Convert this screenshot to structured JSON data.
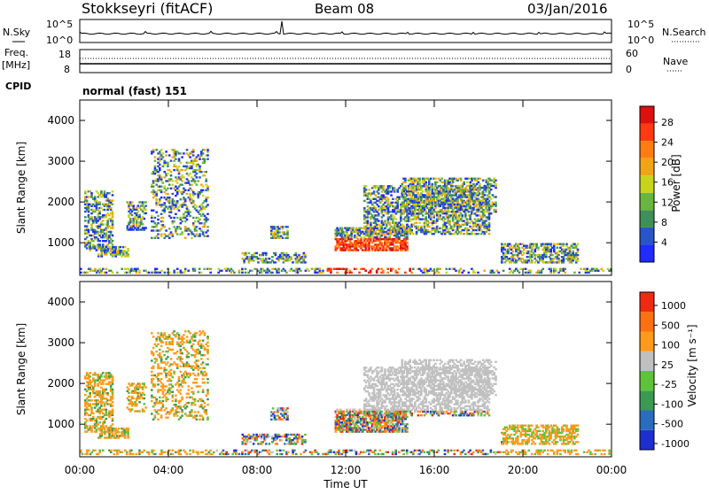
{
  "header": {
    "station": "Stokkseyri (fitACF)",
    "beam": "Beam 08",
    "date": "03/Jan/2016"
  },
  "noise_panel": {
    "left_label": "N.Sky",
    "right_label": "N.Search",
    "left_ticks": [
      "10^5",
      "10^0"
    ],
    "right_ticks": [
      "10^5",
      "10^0"
    ]
  },
  "freq_panel": {
    "left_label_1": "Freq.",
    "left_label_2": "[MHz]",
    "right_label": "Nave",
    "left_ticks": [
      "18",
      "8"
    ],
    "right_ticks": [
      "60",
      "0"
    ],
    "cpid_label": "CPID",
    "cpid_value": "normal (fast) 151"
  },
  "colors": {
    "power_scale": [
      "#1f2bff",
      "#2a55c9",
      "#3f8f58",
      "#6ab440",
      "#c8d41b",
      "#f0a514",
      "#ff7d10",
      "#ff3a10",
      "#dd1010"
    ],
    "velocity_scale": [
      "#1e2fd0",
      "#2a6cbd",
      "#3a9a52",
      "#5fc33a",
      "#c0c0c0",
      "#ff9a1a",
      "#ff7010",
      "#f02a12"
    ]
  },
  "chart_data": [
    {
      "type": "heatmap",
      "title": "Power",
      "ylabel": "Slant Range [km]",
      "yticks": [
        "1000",
        "2000",
        "3000",
        "4000"
      ],
      "ylim": [
        200,
        4500
      ],
      "xlim": [
        "00:00",
        "24:00"
      ],
      "colorbar_label": "Power [dB]",
      "colorbar_ticks": [
        "4",
        "8",
        "12",
        "16",
        "20",
        "24",
        "28"
      ],
      "colorbar_range": [
        0,
        30
      ]
    },
    {
      "type": "heatmap",
      "title": "Velocity",
      "ylabel": "Slant Range [km]",
      "yticks": [
        "1000",
        "2000",
        "3000",
        "4000"
      ],
      "ylim": [
        200,
        4500
      ],
      "xlabel": "Time UT",
      "xticks": [
        "00:00",
        "04:00",
        "08:00",
        "12:00",
        "16:00",
        "20:00",
        "00:00"
      ],
      "colorbar_label": "Velocity [m s⁻¹]",
      "colorbar_ticks": [
        "1000",
        "500",
        "100",
        "25",
        "-25",
        "-100",
        "-500",
        "-1000"
      ]
    }
  ]
}
